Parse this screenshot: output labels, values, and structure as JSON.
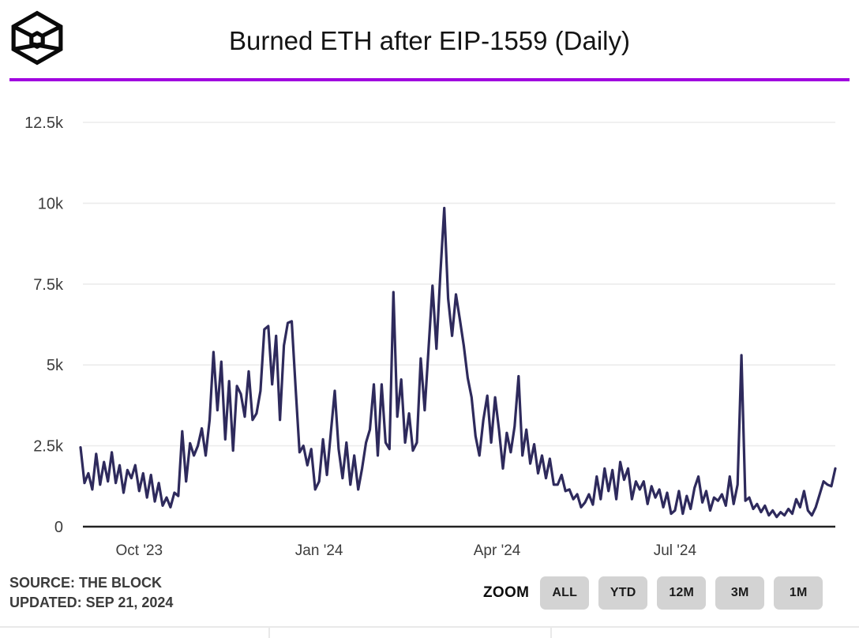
{
  "header": {
    "title": "Burned ETH after EIP-1559 (Daily)",
    "logo": "the-block-cube-logo"
  },
  "brand": {
    "accent_color": "#A000E0",
    "line_color": "#2E2A5C",
    "grid_color": "#ececec",
    "axis_color": "#222222",
    "button_bg": "#d3d3d3"
  },
  "footer": {
    "source_line": "SOURCE: THE BLOCK",
    "updated_line": "UPDATED: SEP 21, 2024",
    "zoom_label": "ZOOM",
    "zoom_buttons": [
      {
        "label": "ALL"
      },
      {
        "label": "YTD"
      },
      {
        "label": "12M"
      },
      {
        "label": "3M"
      },
      {
        "label": "1M"
      }
    ]
  },
  "chart_data": {
    "type": "line",
    "title": "Burned ETH after EIP-1559 (Daily)",
    "series_name": "ETH burned per day",
    "x_range": [
      "Sep 2023",
      "Sep 21, 2024"
    ],
    "x_interval_days": 2,
    "ylim": [
      0,
      12500
    ],
    "grid": "horizontal",
    "legend": "none",
    "yticks": [
      {
        "label": "0",
        "value": 0
      },
      {
        "label": "2.5k",
        "value": 2500
      },
      {
        "label": "5k",
        "value": 5000
      },
      {
        "label": "7.5k",
        "value": 7500
      },
      {
        "label": "10k",
        "value": 10000
      },
      {
        "label": "12.5k",
        "value": 12500
      }
    ],
    "xticks": [
      {
        "label": "Oct '23",
        "index": 15
      },
      {
        "label": "Jan '24",
        "index": 61
      },
      {
        "label": "Apr '24",
        "index": 106.5
      },
      {
        "label": "Jul '24",
        "index": 152
      }
    ],
    "values": [
      2450,
      1350,
      1650,
      1150,
      2250,
      1300,
      2000,
      1400,
      2300,
      1350,
      1900,
      1050,
      1750,
      1500,
      1900,
      1100,
      1650,
      900,
      1600,
      780,
      1350,
      650,
      900,
      600,
      1050,
      950,
      2950,
      1400,
      2580,
      2200,
      2500,
      3040,
      2200,
      3300,
      5400,
      3600,
      5100,
      2700,
      4500,
      2350,
      4350,
      4100,
      3400,
      4800,
      3300,
      3500,
      4200,
      6100,
      6200,
      4400,
      5900,
      3300,
      5600,
      6300,
      6350,
      4300,
      2300,
      2500,
      1900,
      2400,
      1150,
      1400,
      2700,
      1600,
      2900,
      4200,
      2400,
      1500,
      2600,
      1300,
      2200,
      1150,
      1800,
      2600,
      3000,
      4400,
      2200,
      4400,
      2600,
      2400,
      7250,
      3400,
      4550,
      2600,
      3500,
      2350,
      2600,
      5200,
      3600,
      5500,
      7450,
      5500,
      7800,
      9850,
      7050,
      5900,
      7180,
      6400,
      5600,
      4600,
      4000,
      2800,
      2200,
      3300,
      4050,
      2600,
      4000,
      3000,
      1800,
      2900,
      2300,
      3100,
      4650,
      2200,
      3000,
      1950,
      2550,
      1650,
      2200,
      1500,
      2100,
      1300,
      1300,
      1600,
      1100,
      1150,
      850,
      1000,
      600,
      750,
      1000,
      680,
      1550,
      850,
      1800,
      1100,
      1750,
      850,
      2000,
      1450,
      1800,
      850,
      1400,
      1150,
      1400,
      700,
      1250,
      900,
      1150,
      600,
      1050,
      400,
      500,
      1100,
      400,
      950,
      550,
      1200,
      1550,
      750,
      1100,
      500,
      900,
      800,
      1000,
      650,
      1550,
      700,
      1300,
      5300,
      800,
      900,
      550,
      700,
      450,
      650,
      350,
      500,
      300,
      450,
      350,
      550,
      400,
      850,
      600,
      1100,
      500,
      350,
      600,
      1000,
      1400,
      1300,
      1250,
      1800
    ]
  }
}
